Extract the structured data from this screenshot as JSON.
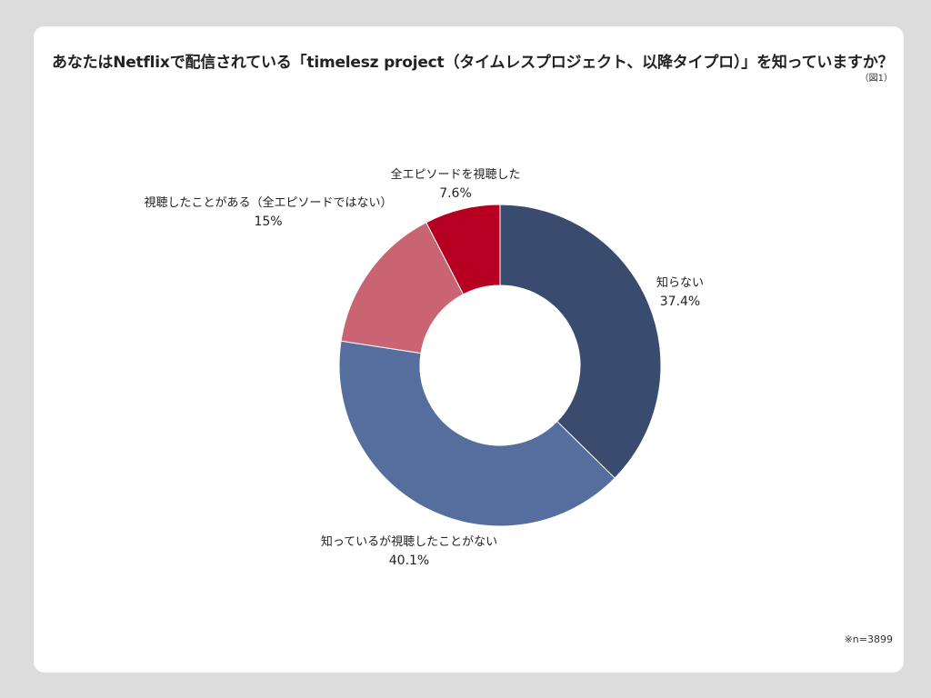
{
  "header": {
    "title": "あなたはNetflixで配信されている「timelesz project（タイムレスプロジェクト、以降タイプロ）」を知っていますか？",
    "figure_label": "（図1）"
  },
  "footer": {
    "note": "※n=3899"
  },
  "chart_data": {
    "type": "pie",
    "variant": "donut",
    "title": "あなたはNetflixで配信されている「timelesz project（タイムレスプロジェクト、以降タイプロ）」を知っていますか？",
    "slices": [
      {
        "label": "知らない",
        "value": 37.4,
        "value_label": "37.4%",
        "color": "#3a4b70"
      },
      {
        "label": "知っているが視聴したことがない",
        "value": 40.1,
        "value_label": "40.1%",
        "color": "#566e9e"
      },
      {
        "label": "視聴したことがある（全エピソードではない）",
        "value": 15,
        "value_label": "15%",
        "color": "#c96573"
      },
      {
        "label": "全エピソードを視聴した",
        "value": 7.6,
        "value_label": "7.6%",
        "color": "#b70021"
      }
    ],
    "start_angle_deg": 0,
    "direction": "clockwise",
    "legend": "none"
  }
}
